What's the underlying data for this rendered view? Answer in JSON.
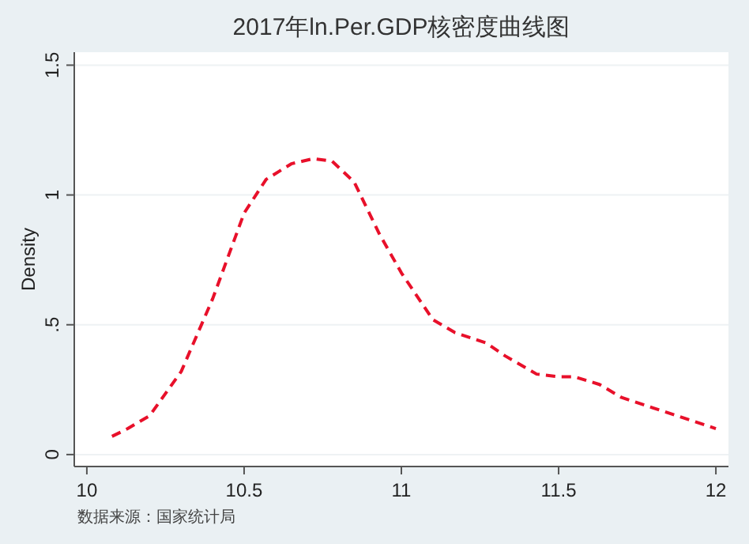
{
  "chart_data": {
    "type": "line",
    "title": "2017年ln.Per.GDP核密度曲线图",
    "ylabel": "Density",
    "annotations": [
      "数据来源：国家统计局"
    ],
    "x": [
      10.08,
      10.13,
      10.2,
      10.3,
      10.4,
      10.5,
      10.57,
      10.65,
      10.72,
      10.78,
      10.85,
      10.93,
      11.0,
      11.1,
      11.17,
      11.27,
      11.33,
      11.43,
      11.5,
      11.55,
      11.63,
      11.7,
      11.8,
      11.9,
      12.0
    ],
    "series": [
      {
        "color": "#e8102a",
        "values": [
          0.07,
          0.1,
          0.15,
          0.32,
          0.6,
          0.93,
          1.06,
          1.12,
          1.14,
          1.13,
          1.05,
          0.85,
          0.7,
          0.52,
          0.47,
          0.43,
          0.38,
          0.31,
          0.3,
          0.3,
          0.27,
          0.22,
          0.18,
          0.14,
          0.1
        ]
      }
    ],
    "xlim": [
      9.96,
      12.04
    ],
    "ylim": [
      -0.046,
      1.55
    ],
    "xticks": [
      10,
      10.5,
      11,
      11.5,
      12
    ],
    "yticks": [
      0,
      {
        "value": 0.5,
        "label": ".5"
      },
      1,
      1.5
    ],
    "grid": "y",
    "line_style": "dashed"
  }
}
